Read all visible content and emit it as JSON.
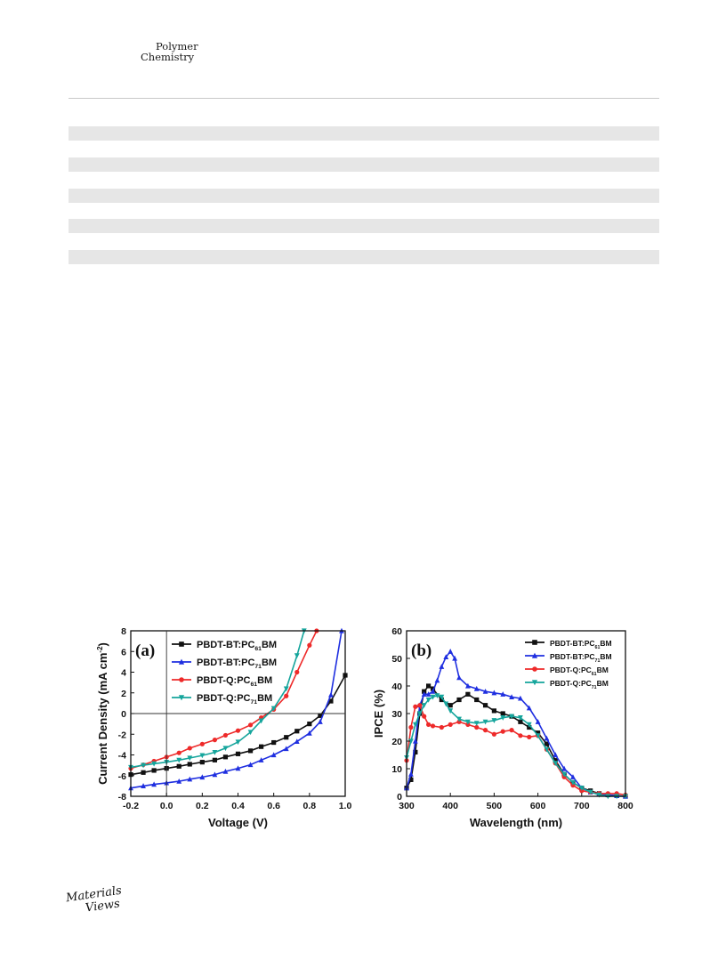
{
  "header": {
    "journal_line1": "Polymer",
    "journal_line2": "Chemistry"
  },
  "footer": {
    "publisher_line1": "Materials",
    "publisher_line2": "Views"
  },
  "chart_data": [
    {
      "type": "line",
      "panel_label": "(a)",
      "xlabel": "Voltage (V)",
      "ylabel": "Current Density (mA cm-2)",
      "xlim": [
        -0.2,
        1.0
      ],
      "ylim": [
        -8,
        8
      ],
      "xticks": [
        -0.2,
        0.0,
        0.2,
        0.4,
        0.6,
        0.8,
        1.0
      ],
      "xtick_labels": [
        "-0.2",
        "0.0",
        "0.2",
        "0.4",
        "0.6",
        "0.8",
        "1.0"
      ],
      "yticks": [
        -8,
        -6,
        -4,
        -2,
        0,
        2,
        4,
        6,
        8
      ],
      "ytick_labels": [
        "-8",
        "-6",
        "-4",
        "-2",
        "0",
        "2",
        "4",
        "6",
        "8"
      ],
      "legend_position": "top-left",
      "series": [
        {
          "name": "PBDT-BT:PC61BM",
          "legend_main": "PBDT-BT:PC",
          "legend_sub": "61",
          "legend_tail": "BM",
          "color": "#111111",
          "marker": "square",
          "x": [
            -0.2,
            -0.13,
            -0.07,
            0.0,
            0.07,
            0.13,
            0.2,
            0.27,
            0.33,
            0.4,
            0.47,
            0.53,
            0.6,
            0.67,
            0.73,
            0.8,
            0.86,
            0.92,
            1.0
          ],
          "y": [
            -5.9,
            -5.7,
            -5.5,
            -5.3,
            -5.1,
            -4.9,
            -4.7,
            -4.5,
            -4.2,
            -3.9,
            -3.6,
            -3.2,
            -2.8,
            -2.3,
            -1.7,
            -1.0,
            -0.2,
            1.2,
            3.7
          ]
        },
        {
          "name": "PBDT-BT:PC71BM",
          "legend_main": "PBDT-BT:PC",
          "legend_sub": "71",
          "legend_tail": "BM",
          "color": "#1f2fe0",
          "marker": "triangle-up",
          "x": [
            -0.2,
            -0.13,
            -0.07,
            0.0,
            0.07,
            0.13,
            0.2,
            0.27,
            0.33,
            0.4,
            0.47,
            0.53,
            0.6,
            0.67,
            0.73,
            0.8,
            0.86,
            0.92,
            0.98
          ],
          "y": [
            -7.2,
            -7.0,
            -6.85,
            -6.7,
            -6.55,
            -6.35,
            -6.15,
            -5.9,
            -5.6,
            -5.3,
            -4.95,
            -4.5,
            -4.0,
            -3.4,
            -2.7,
            -1.9,
            -0.8,
            1.8,
            8.0
          ]
        },
        {
          "name": "PBDT-Q:PC61BM",
          "legend_main": "PBDT-Q:PC",
          "legend_sub": "61",
          "legend_tail": "BM",
          "color": "#ee2a2a",
          "marker": "circle",
          "x": [
            -0.2,
            -0.13,
            -0.07,
            0.0,
            0.07,
            0.13,
            0.2,
            0.27,
            0.33,
            0.4,
            0.47,
            0.53,
            0.6,
            0.67,
            0.73,
            0.8,
            0.84
          ],
          "y": [
            -5.3,
            -4.95,
            -4.6,
            -4.2,
            -3.8,
            -3.35,
            -2.95,
            -2.55,
            -2.1,
            -1.65,
            -1.1,
            -0.4,
            0.4,
            1.7,
            4.0,
            6.6,
            8.0
          ]
        },
        {
          "name": "PBDT-Q:PC71BM",
          "legend_main": "PBDT-Q:PC",
          "legend_sub": "71",
          "legend_tail": "BM",
          "color": "#15a59c",
          "marker": "triangle-down",
          "x": [
            -0.2,
            -0.13,
            -0.07,
            0.0,
            0.07,
            0.13,
            0.2,
            0.27,
            0.33,
            0.4,
            0.47,
            0.53,
            0.6,
            0.67,
            0.73,
            0.77
          ],
          "y": [
            -5.2,
            -5.0,
            -4.85,
            -4.7,
            -4.5,
            -4.3,
            -4.05,
            -3.75,
            -3.35,
            -2.75,
            -1.8,
            -0.7,
            0.5,
            2.4,
            5.6,
            8.0
          ]
        }
      ]
    },
    {
      "type": "line",
      "panel_label": "(b)",
      "xlabel": "Wavelength (nm)",
      "ylabel": "IPCE (%)",
      "xlim": [
        300,
        800
      ],
      "ylim": [
        0,
        60
      ],
      "xticks": [
        300,
        400,
        500,
        600,
        700,
        800
      ],
      "xtick_labels": [
        "300",
        "400",
        "500",
        "600",
        "700",
        "800"
      ],
      "yticks": [
        0,
        10,
        20,
        30,
        40,
        50,
        60
      ],
      "ytick_labels": [
        "0",
        "10",
        "20",
        "30",
        "40",
        "50",
        "60"
      ],
      "legend_position": "top-right",
      "series": [
        {
          "name": "PBDT-BT:PC61BM",
          "legend_main": "PBDT-BT:PC",
          "legend_sub": "61",
          "legend_tail": "BM",
          "color": "#111111",
          "marker": "square",
          "x": [
            300,
            310,
            320,
            330,
            340,
            350,
            360,
            380,
            400,
            420,
            440,
            460,
            480,
            500,
            520,
            540,
            560,
            580,
            600,
            620,
            640,
            660,
            680,
            700,
            720,
            740,
            760,
            780,
            800
          ],
          "y": [
            3,
            6,
            16,
            30,
            38,
            40,
            39,
            35,
            33,
            35,
            37,
            35,
            33,
            31,
            30,
            29,
            27,
            25,
            23,
            19,
            13,
            8,
            5,
            3,
            2,
            1,
            0.5,
            0.2,
            0
          ]
        },
        {
          "name": "PBDT-BT:PC71BM",
          "legend_main": "PBDT-BT:PC",
          "legend_sub": "71",
          "legend_tail": "BM",
          "color": "#1f2fe0",
          "marker": "triangle-up",
          "x": [
            300,
            310,
            320,
            330,
            340,
            350,
            360,
            370,
            380,
            390,
            400,
            410,
            420,
            440,
            460,
            480,
            500,
            520,
            540,
            560,
            580,
            600,
            620,
            640,
            660,
            680,
            700,
            720,
            740,
            760,
            780,
            800
          ],
          "y": [
            3,
            8,
            20,
            33,
            37,
            37,
            38,
            42,
            47,
            50.5,
            52.5,
            50,
            43,
            40,
            39,
            38,
            37.5,
            37,
            36,
            35.5,
            32,
            27,
            21,
            15,
            10,
            7,
            3,
            1.5,
            1,
            0.5,
            0.2,
            0
          ]
        },
        {
          "name": "PBDT-Q:PC61BM",
          "legend_main": "PBDT-Q:PC",
          "legend_sub": "61",
          "legend_tail": "BM",
          "color": "#ee2a2a",
          "marker": "circle",
          "x": [
            300,
            310,
            320,
            330,
            340,
            350,
            360,
            380,
            400,
            420,
            440,
            460,
            480,
            500,
            520,
            540,
            560,
            580,
            600,
            620,
            640,
            660,
            680,
            700,
            720,
            740,
            760,
            780,
            800
          ],
          "y": [
            13,
            25,
            32.5,
            33,
            29,
            26,
            25.5,
            25,
            26,
            27,
            26,
            25,
            24,
            22.5,
            23.5,
            24,
            22,
            21.5,
            22,
            17,
            12,
            7,
            4,
            2,
            1.5,
            1,
            1,
            1,
            0.5
          ]
        },
        {
          "name": "PBDT-Q:PC71BM",
          "legend_main": "PBDT-Q:PC",
          "legend_sub": "71",
          "legend_tail": "BM",
          "color": "#15a59c",
          "marker": "triangle-down",
          "x": [
            300,
            310,
            320,
            330,
            340,
            350,
            360,
            370,
            380,
            390,
            400,
            420,
            440,
            460,
            480,
            500,
            520,
            540,
            560,
            580,
            600,
            620,
            640,
            660,
            680,
            700,
            720,
            740,
            760,
            780,
            800
          ],
          "y": [
            14,
            20,
            26,
            30,
            33,
            35,
            36,
            36.5,
            36,
            33.5,
            31,
            28,
            27,
            26.5,
            27,
            27.5,
            28.5,
            29,
            28.5,
            26,
            22,
            17,
            12,
            8,
            5,
            3,
            1.5,
            0.5,
            0,
            0,
            0
          ]
        }
      ]
    }
  ]
}
